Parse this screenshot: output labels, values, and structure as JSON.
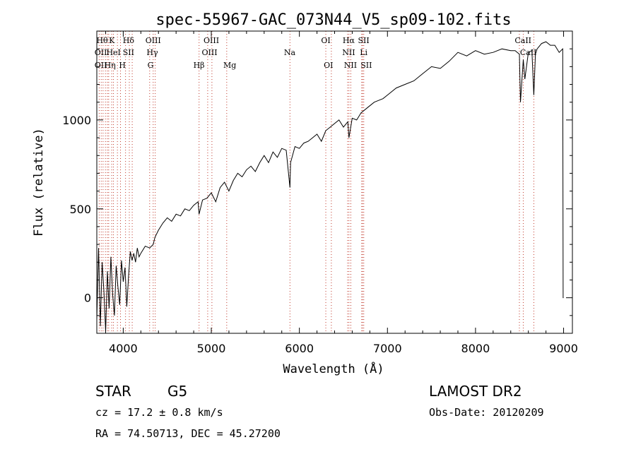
{
  "chart_data": {
    "type": "line",
    "title": "spec-55967-GAC_073N44_V5_sp09-102.fits",
    "xlabel": "Wavelength (Å)",
    "ylabel": "Flux (relative)",
    "xlim": [
      3700,
      9100
    ],
    "ylim": [
      -200,
      1500
    ],
    "xticks": [
      4000,
      5000,
      6000,
      7000,
      8000,
      9000
    ],
    "yticks": [
      0,
      500,
      1000
    ],
    "grid": false,
    "series": [
      {
        "x": [
          3700,
          3720,
          3740,
          3760,
          3780,
          3800,
          3820,
          3840,
          3860,
          3880,
          3900,
          3920,
          3940,
          3960,
          3980,
          4000,
          4020,
          4040,
          4060,
          4080,
          4100,
          4120,
          4140,
          4160,
          4180,
          4200,
          4250,
          4300,
          4340,
          4360,
          4400,
          4450,
          4500,
          4550,
          4600,
          4650,
          4700,
          4750,
          4800,
          4850,
          4861,
          4900,
          4950,
          5000,
          5050,
          5100,
          5150,
          5200,
          5250,
          5300,
          5350,
          5400,
          5450,
          5500,
          5550,
          5600,
          5650,
          5700,
          5750,
          5800,
          5850,
          5893,
          5900,
          5950,
          6000,
          6050,
          6100,
          6150,
          6200,
          6250,
          6300,
          6350,
          6400,
          6450,
          6500,
          6550,
          6563,
          6600,
          6650,
          6700,
          6750,
          6800,
          6850,
          6900,
          6950,
          7000,
          7100,
          7200,
          7300,
          7400,
          7500,
          7600,
          7700,
          7800,
          7900,
          8000,
          8100,
          8200,
          8300,
          8400,
          8450,
          8498,
          8510,
          8542,
          8560,
          8600,
          8640,
          8662,
          8680,
          8700,
          8750,
          8800,
          8850,
          8900,
          8950,
          8990,
          8995,
          9000
        ],
        "y": [
          -120,
          280,
          -160,
          200,
          40,
          -190,
          150,
          -60,
          230,
          20,
          -100,
          180,
          60,
          -40,
          210,
          90,
          170,
          -50,
          120,
          260,
          210,
          250,
          200,
          280,
          230,
          250,
          290,
          280,
          300,
          340,
          380,
          420,
          450,
          430,
          470,
          460,
          500,
          490,
          520,
          540,
          470,
          550,
          560,
          590,
          540,
          620,
          650,
          600,
          660,
          700,
          680,
          720,
          740,
          710,
          760,
          800,
          760,
          820,
          790,
          840,
          830,
          620,
          760,
          850,
          840,
          870,
          880,
          900,
          920,
          880,
          940,
          960,
          980,
          1000,
          960,
          990,
          900,
          1010,
          1000,
          1040,
          1060,
          1080,
          1100,
          1110,
          1120,
          1140,
          1180,
          1200,
          1220,
          1260,
          1300,
          1290,
          1330,
          1380,
          1360,
          1390,
          1370,
          1380,
          1400,
          1390,
          1390,
          1370,
          1100,
          1340,
          1230,
          1380,
          1390,
          1140,
          1370,
          1400,
          1430,
          1440,
          1420,
          1420,
          1380,
          1400,
          0,
          0
        ]
      }
    ],
    "line_markers": {
      "top_row": [
        "Hθ",
        "K",
        "Hδ",
        "OIII",
        "OIII",
        "OI",
        "Hα",
        "SII",
        "CaII"
      ],
      "middle_row": [
        "OII",
        "HeI",
        "SII",
        "Hγ",
        "OIII",
        "Na",
        "NII",
        "Li",
        "CaII"
      ],
      "bottom_row": [
        "OII",
        "Hη",
        "H",
        "G",
        "Hβ",
        "Mg",
        "OI",
        "NII",
        "SII"
      ]
    }
  },
  "info": {
    "object_class": "STAR",
    "subclass": "G5",
    "survey": "LAMOST DR2",
    "redshift_line": "cz = 17.2 ± 0.8 km/s",
    "obs_date": "Obs-Date: 20120209",
    "coords": "RA =  74.50713, DEC =  45.27200"
  }
}
